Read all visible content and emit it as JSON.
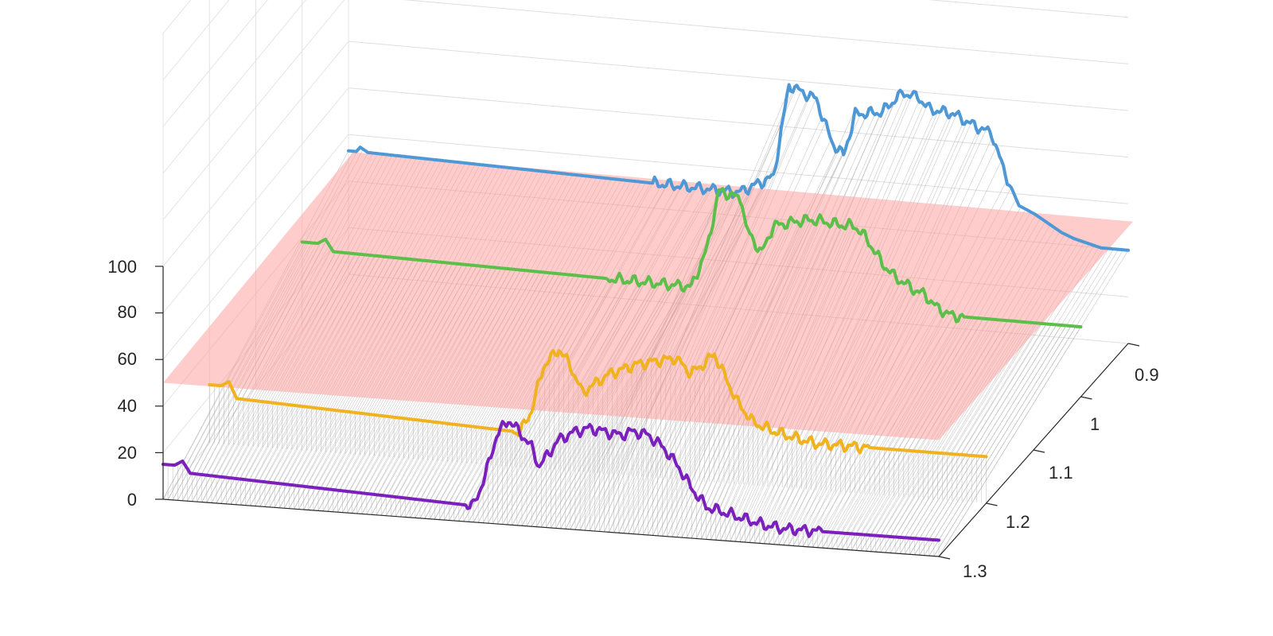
{
  "chart_data": {
    "type": "line",
    "view": "3d-waterfall",
    "z_ticks": [
      "0",
      "20",
      "40",
      "60",
      "80",
      "100"
    ],
    "y_ticks": [
      "0.9",
      "1",
      "1.1",
      "1.2",
      "1.3"
    ],
    "zlim": [
      0,
      100
    ],
    "ylim": [
      0.9,
      1.3
    ],
    "grid": true,
    "threshold_plane": {
      "z": 50,
      "color": "#ff9a9a",
      "opacity": 0.5
    },
    "series": [
      {
        "y": 0.9,
        "color": "#4f98d6",
        "drop_to_floor": true,
        "profile": [
          [
            0,
            53
          ],
          [
            2,
            53
          ],
          [
            3,
            55
          ],
          [
            5,
            53
          ],
          [
            100,
            50
          ],
          [
            109,
            58
          ],
          [
            113,
            98
          ],
          [
            117,
            95
          ],
          [
            120,
            93
          ],
          [
            124,
            75
          ],
          [
            127,
            70
          ],
          [
            130,
            88
          ],
          [
            137,
            90
          ],
          [
            138,
            92
          ],
          [
            142,
            99
          ],
          [
            146,
            98
          ],
          [
            149,
            93
          ],
          [
            155,
            92
          ],
          [
            160,
            88
          ],
          [
            165,
            85
          ],
          [
            168,
            70
          ],
          [
            172,
            55
          ],
          [
            176,
            52
          ],
          [
            183,
            45
          ],
          [
            186,
            43
          ],
          [
            193,
            40
          ],
          [
            200,
            40
          ]
        ]
      },
      {
        "y": 1.0,
        "color": "#5cbf4a",
        "drop_to_floor": true,
        "profile": [
          [
            0,
            38
          ],
          [
            4,
            38
          ],
          [
            6,
            40
          ],
          [
            8,
            35
          ],
          [
            100,
            33
          ],
          [
            104,
            50
          ],
          [
            107,
            75
          ],
          [
            110,
            74
          ],
          [
            113,
            72
          ],
          [
            114,
            60
          ],
          [
            118,
            50
          ],
          [
            121,
            62
          ],
          [
            125,
            64
          ],
          [
            130,
            66
          ],
          [
            133,
            66
          ],
          [
            138,
            65
          ],
          [
            142,
            65
          ],
          [
            145,
            60
          ],
          [
            149,
            50
          ],
          [
            152,
            45
          ],
          [
            157,
            40
          ],
          [
            160,
            38
          ],
          [
            163,
            33
          ],
          [
            167,
            30
          ],
          [
            170,
            30
          ],
          [
            175,
            30
          ],
          [
            180,
            30
          ],
          [
            200,
            30
          ]
        ]
      },
      {
        "y": 1.2,
        "color": "#f0b21e",
        "drop_to_floor": false,
        "profile": [
          [
            0,
            25
          ],
          [
            3,
            25
          ],
          [
            5,
            27
          ],
          [
            7,
            20
          ],
          [
            80,
            15
          ],
          [
            83,
            25
          ],
          [
            86,
            44
          ],
          [
            90,
            52
          ],
          [
            93,
            45
          ],
          [
            96,
            34
          ],
          [
            99,
            38
          ],
          [
            103,
            43
          ],
          [
            110,
            48
          ],
          [
            115,
            50
          ],
          [
            120,
            52
          ],
          [
            124,
            46
          ],
          [
            127,
            50
          ],
          [
            130,
            55
          ],
          [
            133,
            45
          ],
          [
            136,
            35
          ],
          [
            140,
            27
          ],
          [
            145,
            24
          ],
          [
            150,
            22
          ],
          [
            156,
            20
          ],
          [
            200,
            20
          ]
        ]
      },
      {
        "y": 1.3,
        "color": "#7b1fbd",
        "drop_to_floor": false,
        "profile": [
          [
            0,
            15
          ],
          [
            3,
            15
          ],
          [
            5,
            17
          ],
          [
            7,
            12
          ],
          [
            80,
            7
          ],
          [
            83,
            20
          ],
          [
            86,
            38
          ],
          [
            89,
            45
          ],
          [
            92,
            40
          ],
          [
            95,
            34
          ],
          [
            97,
            26
          ],
          [
            99,
            31
          ],
          [
            102,
            38
          ],
          [
            106,
            42
          ],
          [
            110,
            44
          ],
          [
            114,
            43
          ],
          [
            118,
            42
          ],
          [
            121,
            44
          ],
          [
            125,
            43
          ],
          [
            129,
            38
          ],
          [
            133,
            30
          ],
          [
            136,
            22
          ],
          [
            140,
            14
          ],
          [
            145,
            12
          ],
          [
            150,
            10
          ],
          [
            155,
            8
          ],
          [
            160,
            7
          ],
          [
            200,
            7
          ]
        ]
      }
    ]
  }
}
